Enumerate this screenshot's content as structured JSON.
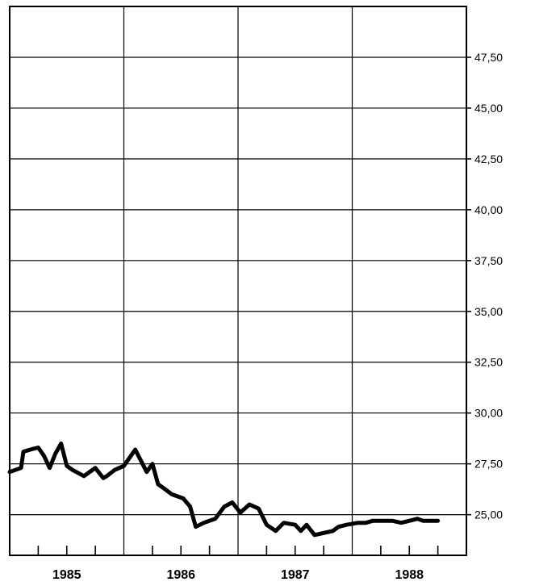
{
  "chart_data": {
    "type": "line",
    "title": "",
    "xlabel": "",
    "ylabel": "",
    "x_tick_labels": [
      "1985",
      "1986",
      "1987",
      "1988"
    ],
    "y_tick_labels": [
      "25,00",
      "27,50",
      "30,00",
      "32,50",
      "35,00",
      "37,50",
      "40,00",
      "42,50",
      "45,00",
      "47,50"
    ],
    "y_tick_values": [
      25.0,
      27.5,
      30.0,
      32.5,
      35.0,
      37.5,
      40.0,
      42.5,
      45.0,
      47.5
    ],
    "ylim": [
      23.0,
      50.0
    ],
    "xlim": [
      1984.5,
      1988.5
    ],
    "y_axis_position": "right",
    "grid": true,
    "series": [
      {
        "x": [
          1984.5,
          1984.55,
          1984.6,
          1984.62,
          1984.68,
          1984.75,
          1984.8,
          1984.85,
          1984.9,
          1984.95,
          1985.0,
          1985.05,
          1985.15,
          1985.25,
          1985.32,
          1985.35,
          1985.42,
          1985.5,
          1985.6,
          1985.7,
          1985.75,
          1985.8,
          1985.85,
          1985.92,
          1986.02,
          1986.08,
          1986.13,
          1986.2,
          1986.3,
          1986.38,
          1986.45,
          1986.52,
          1986.6,
          1986.68,
          1986.75,
          1986.83,
          1986.9,
          1987.0,
          1987.05,
          1987.1,
          1987.17,
          1987.25,
          1987.33,
          1987.38,
          1987.45,
          1987.55,
          1987.62,
          1987.68,
          1987.75,
          1987.85,
          1987.93,
          1988.0,
          1988.07,
          1988.12,
          1988.2,
          1988.25
        ],
        "y": [
          27.1,
          27.2,
          27.3,
          28.1,
          28.2,
          28.3,
          27.9,
          27.3,
          28.0,
          28.5,
          27.4,
          27.2,
          26.9,
          27.3,
          26.8,
          26.9,
          27.2,
          27.4,
          28.2,
          27.1,
          27.5,
          26.5,
          26.3,
          26.0,
          25.8,
          25.4,
          24.4,
          24.6,
          24.8,
          25.4,
          25.6,
          25.1,
          25.5,
          25.3,
          24.5,
          24.2,
          24.6,
          24.5,
          24.2,
          24.5,
          24.0,
          24.1,
          24.2,
          24.4,
          24.5,
          24.6,
          24.6,
          24.7,
          24.7,
          24.7,
          24.6,
          24.7,
          24.8,
          24.7,
          24.7,
          24.7
        ]
      }
    ]
  }
}
